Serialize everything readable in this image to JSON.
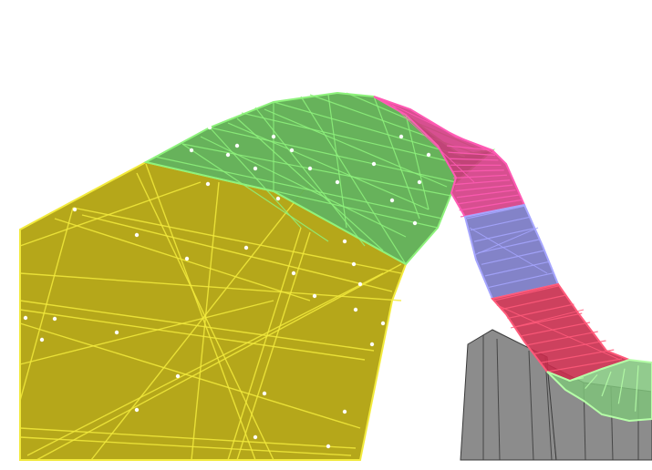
{
  "scene": {
    "background": "#ffffff",
    "segments": [
      {
        "name": "yellow-segment",
        "fill": "#b5a71a",
        "stroke": "#f2ea3c"
      },
      {
        "name": "green-segment",
        "fill": "#5fae52",
        "stroke": "#8ef27c"
      },
      {
        "name": "magenta-segment",
        "fill": "#d0307d",
        "stroke": "#ff5ab4"
      },
      {
        "name": "violet-segment",
        "fill": "#7575c2",
        "stroke": "#a6a6ff"
      },
      {
        "name": "red-segment",
        "fill": "#c82c4c",
        "stroke": "#ff5a7a"
      },
      {
        "name": "lower-green-segment",
        "fill": "#7fc27a",
        "stroke": "#b6ffa8"
      }
    ],
    "support_structure": {
      "fill": "#8c8c8c",
      "stroke": "#3a3a3a"
    },
    "node_color": "#ffffff"
  }
}
